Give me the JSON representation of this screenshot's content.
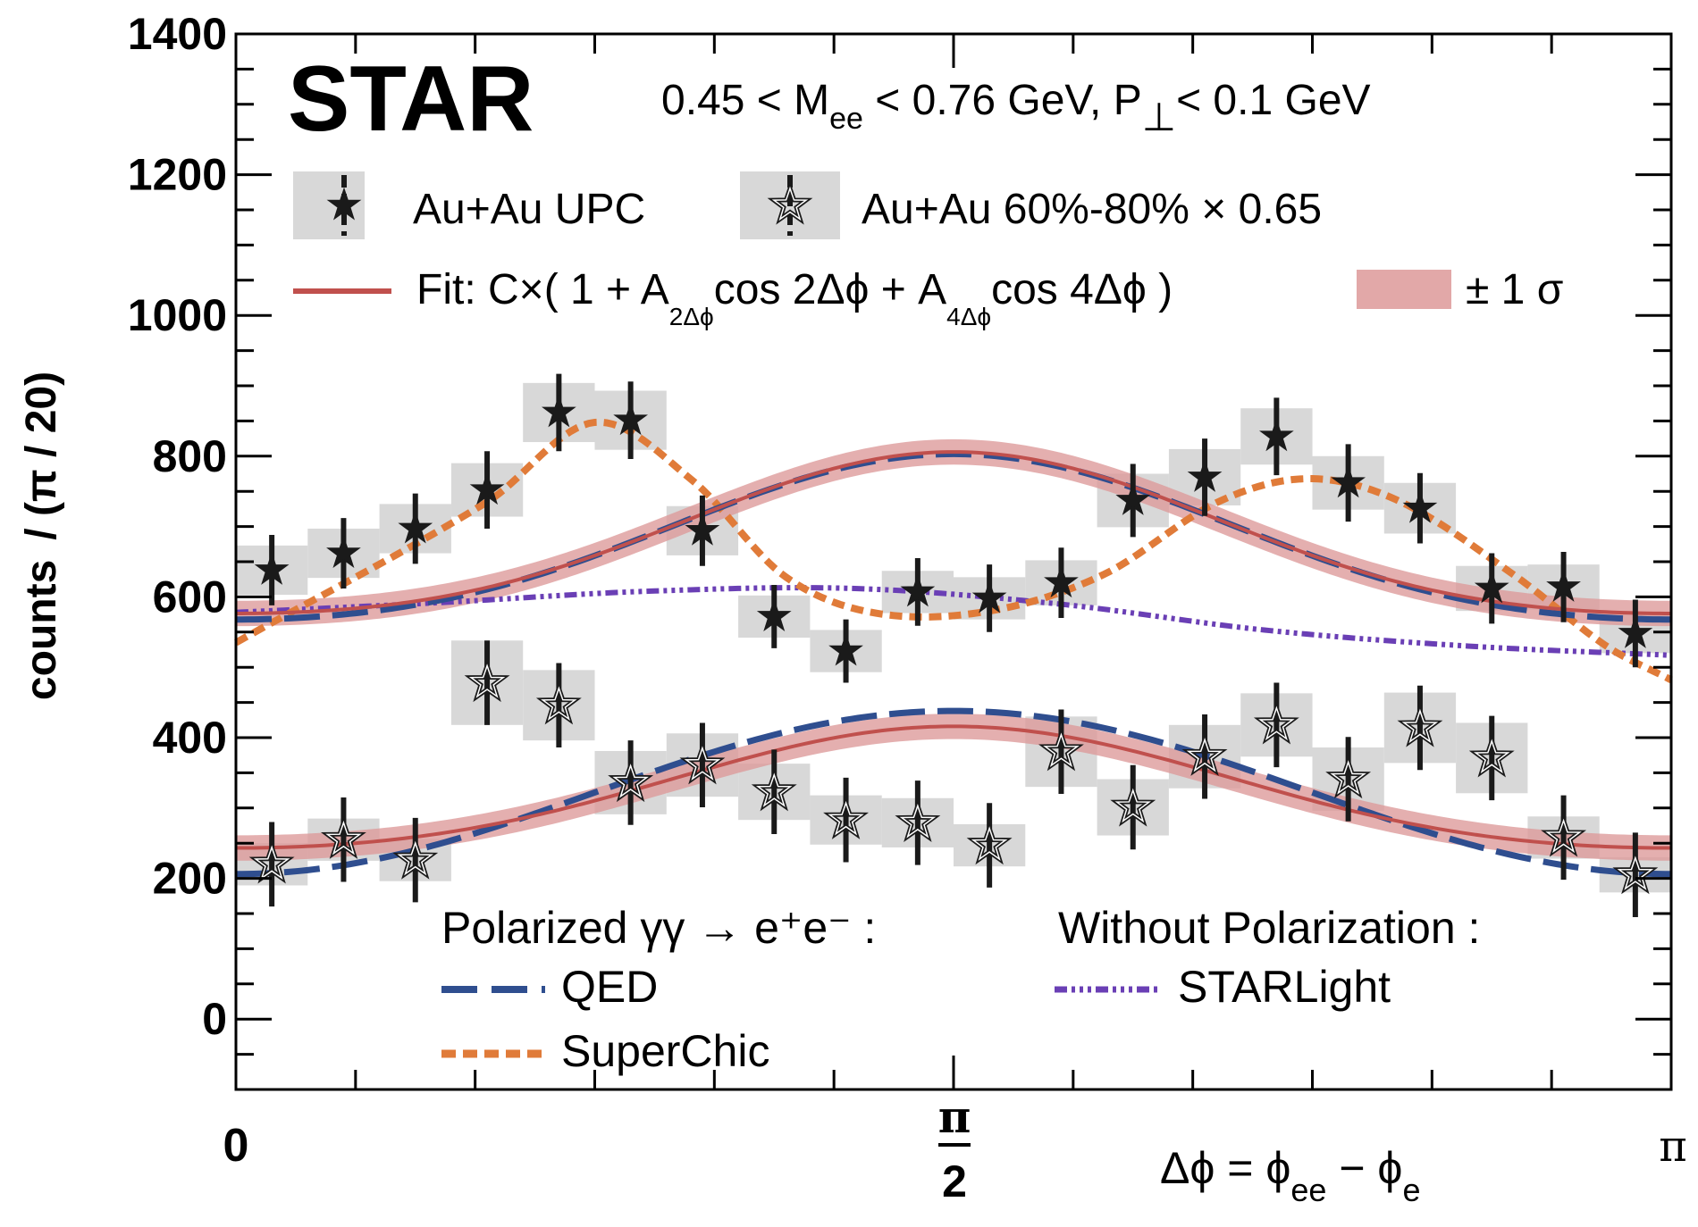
{
  "chart_data": {
    "type": "scatter",
    "title": "STAR",
    "subtitle": {
      "lo": "0.45 < M",
      "mee": "ee",
      "mid": " < 0.76 GeV, P",
      "perp": "⊥",
      "hi": "< 0.1 GeV"
    },
    "ylabel": {
      "main": "counts",
      "unit": "/ (π / 20)"
    },
    "xlabel": {
      "lhs": "Δϕ = ϕ",
      "sub1": "ee",
      "mid": " − ϕ",
      "sub2": "e"
    },
    "xlim": [
      0,
      3.14159
    ],
    "ylim": [
      -100,
      1400
    ],
    "xticks": [
      {
        "value": 0,
        "label": "0"
      },
      {
        "value": 1.5708,
        "label_num": "π",
        "label_den": "2"
      },
      {
        "value": 3.14159,
        "label": "π"
      }
    ],
    "yticks": [
      0,
      200,
      400,
      600,
      800,
      1000,
      1200,
      1400
    ],
    "legend": {
      "upc_label": "Au+Au UPC",
      "peri_label": "Au+Au 60%-80% × 0.65",
      "fit_main": "Fit: C×( 1 + A",
      "fit_sub1": "2Δϕ",
      "fit_mid": "cos 2Δϕ + A",
      "fit_sub2": "4Δϕ",
      "fit_tail": "cos 4Δϕ )",
      "band_label": "± 1 σ",
      "pol_header": "Polarized γγ → e⁺e⁻ :",
      "qed_label": "QED",
      "superchic_label": "SuperChic",
      "nopol_header": "Without Polarization :",
      "starlight_label": "STARLight"
    },
    "colors": {
      "fit": "#c0504d",
      "band": "#dd9999",
      "qed": "#2f4e8f",
      "superchic": "#e07b39",
      "starlight": "#6a3fb5",
      "syst": "#d8d8d8",
      "marker": "#1a1a1a"
    },
    "series": [
      {
        "name": "Au+Au UPC",
        "x": [
          0.0785,
          0.2356,
          0.3927,
          0.5498,
          0.7069,
          0.8639,
          1.021,
          1.1781,
          1.3352,
          1.4923,
          1.6493,
          1.8064,
          1.9635,
          2.1206,
          2.2777,
          2.4347,
          2.5918,
          2.7489,
          2.906,
          3.0631
        ],
        "y": [
          638,
          662,
          697,
          752,
          862,
          851,
          694,
          572,
          523,
          607,
          598,
          620,
          737,
          770,
          828,
          762,
          726,
          612,
          614,
          548
        ],
        "err": [
          50,
          50,
          50,
          55,
          55,
          55,
          50,
          45,
          45,
          48,
          48,
          50,
          52,
          55,
          55,
          55,
          50,
          50,
          50,
          48
        ],
        "syst": [
          35,
          35,
          35,
          38,
          42,
          42,
          35,
          30,
          30,
          30,
          30,
          32,
          38,
          40,
          40,
          38,
          36,
          32,
          32,
          28
        ]
      },
      {
        "name": "Au+Au 60%-80% x 0.65",
        "x": [
          0.0785,
          0.2356,
          0.3927,
          0.5498,
          0.7069,
          0.8639,
          1.021,
          1.1781,
          1.3352,
          1.4923,
          1.6493,
          1.8064,
          1.9635,
          2.1206,
          2.2777,
          2.4347,
          2.5918,
          2.7489,
          2.906,
          3.0631
        ],
        "y": [
          220,
          255,
          226,
          478,
          446,
          336,
          361,
          323,
          283,
          279,
          247,
          380,
          301,
          373,
          418,
          341,
          414,
          371,
          258,
          205
        ],
        "err": [
          60,
          60,
          60,
          60,
          60,
          60,
          60,
          60,
          60,
          60,
          60,
          60,
          60,
          60,
          60,
          60,
          60,
          60,
          60,
          60
        ],
        "syst": [
          30,
          30,
          30,
          60,
          50,
          45,
          45,
          40,
          35,
          35,
          30,
          50,
          40,
          45,
          45,
          45,
          50,
          50,
          30,
          25
        ]
      }
    ],
    "models": {
      "upc_fit": {
        "C": 675,
        "A2": -0.17,
        "A4": 0.024,
        "band": 18
      },
      "upc_qed": {
        "C": 672,
        "A2": -0.175,
        "A4": 0.02
      },
      "upc_superchic_anchors": {
        "x": [
          0,
          0.55,
          0.785,
          1.0,
          1.2,
          1.4,
          1.65,
          1.9,
          2.15,
          2.35,
          2.55,
          2.8,
          3.0,
          3.1416
        ],
        "y": [
          535,
          735,
          848,
          765,
          630,
          577,
          580,
          632,
          735,
          768,
          735,
          630,
          530,
          482
        ]
      },
      "upc_starlight_anchors": {
        "x": [
          0,
          0.45,
          0.9,
          1.35,
          1.8,
          2.25,
          2.7,
          3.1416
        ],
        "y": [
          578,
          592,
          608,
          612,
          590,
          553,
          530,
          517
        ]
      },
      "peri_fit": {
        "C": 320,
        "A2": -0.27,
        "A4": 0.03,
        "band": 18
      },
      "peri_qed": {
        "C": 322,
        "A2": -0.36,
        "A4": 0.0
      }
    }
  }
}
